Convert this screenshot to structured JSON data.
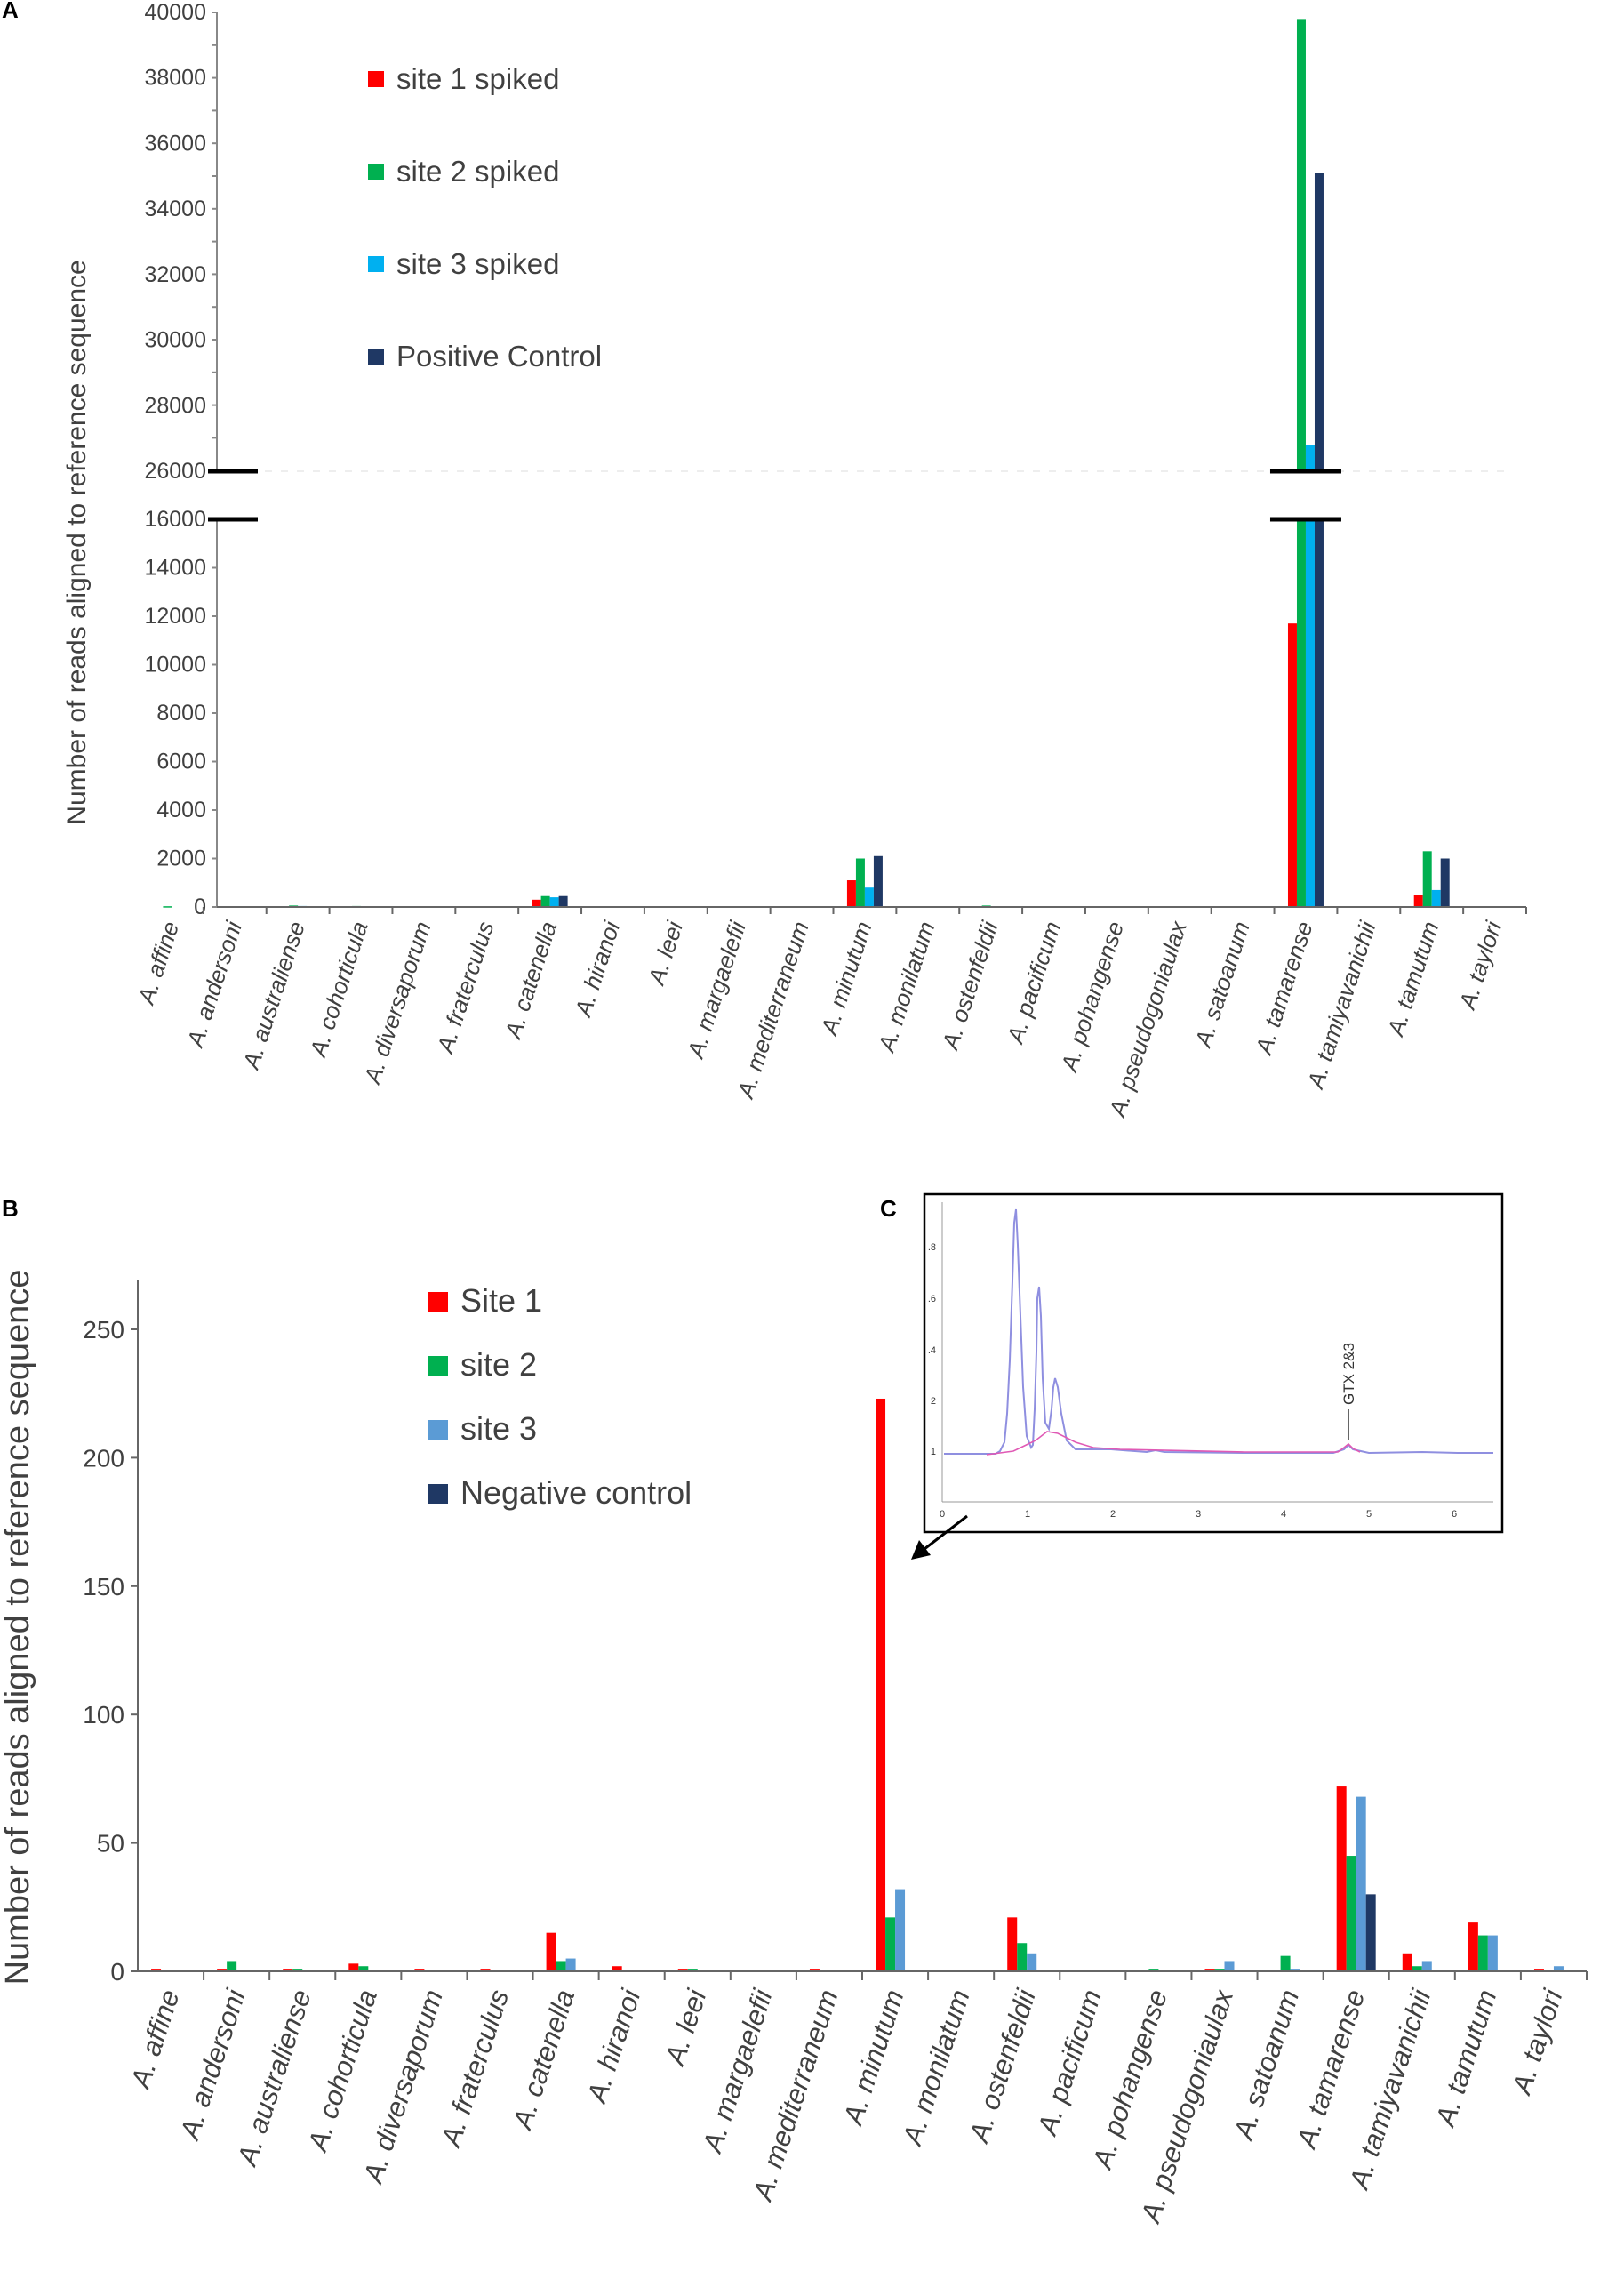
{
  "categories": [
    "A. affine",
    "A. andersoni",
    "A. australiense",
    "A. cohorticula",
    "A. diversaporum",
    "A. fraterculus",
    "A. catenella",
    "A. hiranoi",
    "A. leei",
    "A. margaelefii",
    "A. mediterraneum",
    "A. minutum",
    "A. monilatum",
    "A. ostenfeldii",
    "A. pacificum",
    "A. pohangense",
    "A. pseudogoniaulax",
    "A. satoanum",
    "A. tamarense",
    "A. tamiyavanichii",
    "A. tamutum",
    "A. taylori"
  ],
  "chart_data": [
    {
      "panel": "A",
      "type": "bar",
      "ylabel": "Number of reads aligned to reference sequence",
      "y_axis_break": {
        "lower": [
          0,
          16000
        ],
        "upper": [
          26000,
          40000
        ]
      },
      "ticks_lower": [
        "0",
        "2000",
        "4000",
        "6000",
        "8000",
        "10000",
        "12000",
        "14000",
        "16000"
      ],
      "ticks_upper": [
        "26000",
        "28000",
        "30000",
        "32000",
        "34000",
        "36000",
        "38000",
        "40000"
      ],
      "legend": [
        "site 1 spiked",
        "site 2 spiked",
        "site 3 spiked",
        "Positive Control"
      ],
      "series": [
        {
          "name": "site 1 spiked",
          "color": "#ff0000",
          "values": [
            0,
            0,
            20,
            0,
            0,
            0,
            300,
            0,
            0,
            0,
            0,
            1100,
            0,
            0,
            0,
            0,
            0,
            0,
            11700,
            0,
            500,
            0
          ]
        },
        {
          "name": "site 2 spiked",
          "color": "#00b050",
          "values": [
            30,
            0,
            60,
            40,
            0,
            0,
            450,
            0,
            0,
            0,
            30,
            2000,
            0,
            60,
            0,
            0,
            0,
            0,
            39800,
            20,
            2300,
            0
          ]
        },
        {
          "name": "site 3 spiked",
          "color": "#00b0f0",
          "values": [
            0,
            0,
            40,
            0,
            0,
            0,
            400,
            0,
            0,
            0,
            0,
            800,
            0,
            0,
            0,
            0,
            0,
            0,
            26800,
            0,
            700,
            0
          ]
        },
        {
          "name": "Positive Control",
          "color": "#1f3864",
          "values": [
            0,
            0,
            20,
            30,
            0,
            0,
            450,
            0,
            0,
            0,
            0,
            2100,
            0,
            0,
            0,
            0,
            0,
            0,
            35100,
            0,
            2000,
            0
          ]
        }
      ]
    },
    {
      "panel": "B",
      "type": "bar",
      "ylabel": "Number of reads aligned to reference sequence",
      "ylim": [
        0,
        270
      ],
      "ticks": [
        "0",
        "50",
        "100",
        "150",
        "200",
        "250"
      ],
      "legend": [
        "Site 1",
        "site 2",
        "site 3",
        "Negative control"
      ],
      "series": [
        {
          "name": "Site 1",
          "color": "#ff0000",
          "values": [
            1,
            1,
            1,
            3,
            1,
            1,
            15,
            2,
            1,
            0,
            1,
            223,
            0,
            21,
            0,
            0,
            1,
            0,
            72,
            7,
            19,
            1
          ]
        },
        {
          "name": "site 2",
          "color": "#00b050",
          "values": [
            0,
            4,
            1,
            2,
            0,
            0,
            4,
            0,
            1,
            0,
            0,
            21,
            0,
            11,
            0,
            1,
            1,
            6,
            45,
            2,
            14,
            0
          ]
        },
        {
          "name": "site 3",
          "color": "#5b9bd5",
          "values": [
            0,
            0,
            0,
            0,
            0,
            0,
            5,
            0,
            0,
            0,
            0,
            32,
            0,
            7,
            0,
            0,
            4,
            1,
            68,
            4,
            14,
            2
          ]
        },
        {
          "name": "Negative control",
          "color": "#1f3864",
          "values": [
            0,
            0,
            0,
            0,
            0,
            0,
            0,
            0,
            0,
            0,
            0,
            0,
            0,
            0,
            0,
            0,
            0,
            0,
            30,
            0,
            0,
            0
          ]
        }
      ]
    }
  ],
  "panel_labels": {
    "a": "A",
    "b": "B",
    "c": "C"
  },
  "inset": {
    "peak_label": "GTX 2&3",
    "yticks": [
      "1",
      "2",
      ".4",
      ".6",
      ".8"
    ],
    "xticks": [
      "0",
      "1",
      "2",
      "3",
      "4",
      "5",
      "6"
    ]
  }
}
